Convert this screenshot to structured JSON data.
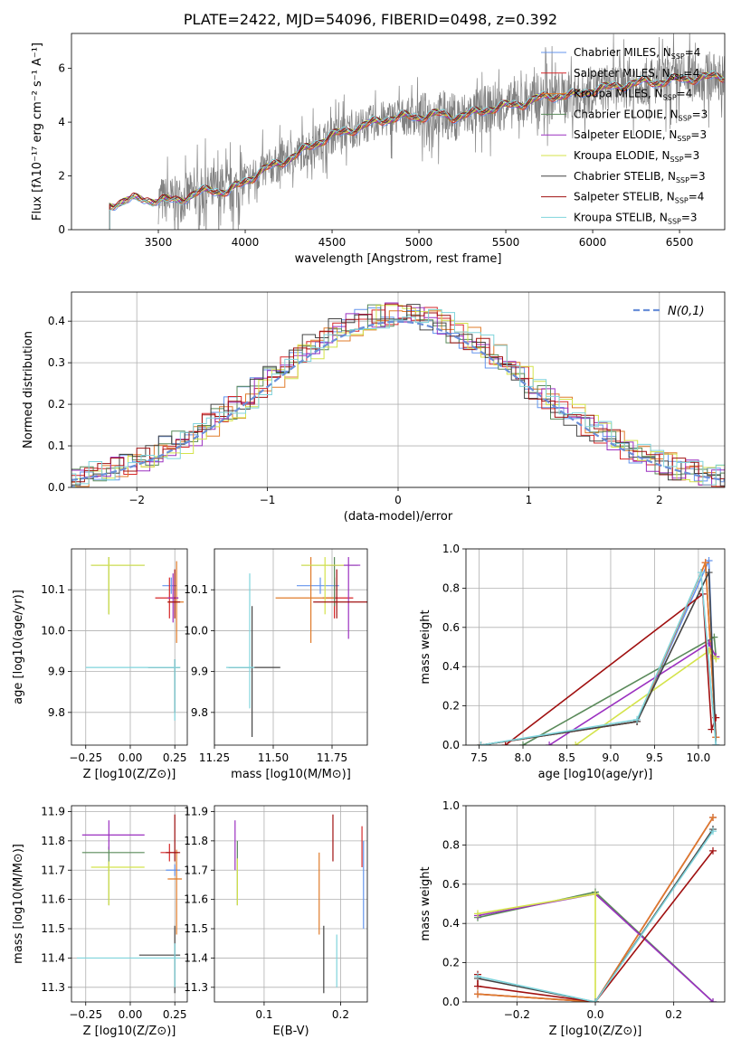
{
  "figure_title": "PLATE=2422, MJD=54096, FIBERID=0498, z=0.392",
  "colors": {
    "Chabrier MILES": "#6495ed",
    "Salpeter MILES": "#d62728",
    "Kroupa MILES": "#e07b2a",
    "Chabrier ELODIE": "#5a8a5a",
    "Salpeter ELODIE": "#9b30c0",
    "Kroupa ELODIE": "#d4e34a",
    "Chabrier STELIB": "#444444",
    "Salpeter STELIB": "#a01010",
    "Kroupa STELIB": "#7fd4dc",
    "normal": "#6a8fd8"
  },
  "chart_data": [
    {
      "id": "spectrum",
      "type": "line",
      "title": "",
      "xlabel": "wavelength [Angstrom, rest frame]",
      "ylabel": "Flux [fλ10⁻¹⁷ erg cm⁻² s⁻¹ A⁻¹]",
      "xlim": [
        3000,
        6760
      ],
      "ylim": [
        0,
        7.3
      ],
      "xticks": [
        3500,
        4000,
        4500,
        5000,
        5500,
        6000,
        6500
      ],
      "yticks": [
        0,
        2,
        4,
        6
      ],
      "grid": false,
      "legend": "upper-right",
      "legend_entries": [
        {
          "name": "Chabrier MILES, N",
          "sub": "SSP",
          "suffix": "=4"
        },
        {
          "name": "Salpeter MILES, N",
          "sub": "SSP",
          "suffix": "=4"
        },
        {
          "name": "Kroupa MILES, N",
          "sub": "SSP",
          "suffix": "=4"
        },
        {
          "name": "Chabrier ELODIE, N",
          "sub": "SSP",
          "suffix": "=3"
        },
        {
          "name": "Salpeter ELODIE, N",
          "sub": "SSP",
          "suffix": "=3"
        },
        {
          "name": "Kroupa ELODIE, N",
          "sub": "SSP",
          "suffix": "=3"
        },
        {
          "name": "Chabrier STELIB, N",
          "sub": "SSP",
          "suffix": "=3"
        },
        {
          "name": "Salpeter STELIB, N",
          "sub": "SSP",
          "suffix": "=4"
        },
        {
          "name": "Kroupa STELIB, N",
          "sub": "SSP",
          "suffix": "=3"
        }
      ],
      "model_start": 3220,
      "model_knots": [
        [
          3220,
          0.9
        ],
        [
          3300,
          1.1
        ],
        [
          3400,
          1.15
        ],
        [
          3500,
          1.1
        ],
        [
          3600,
          1.1
        ],
        [
          3700,
          1.3
        ],
        [
          3800,
          1.5
        ],
        [
          3900,
          1.4
        ],
        [
          4000,
          1.8
        ],
        [
          4100,
          2.2
        ],
        [
          4200,
          2.5
        ],
        [
          4300,
          2.8
        ],
        [
          4400,
          3.2
        ],
        [
          4500,
          3.5
        ],
        [
          4600,
          3.7
        ],
        [
          4700,
          3.9
        ],
        [
          4800,
          4.1
        ],
        [
          4900,
          4.2
        ],
        [
          5000,
          4.2
        ],
        [
          5100,
          4.3
        ],
        [
          5200,
          4.2
        ],
        [
          5300,
          4.3
        ],
        [
          5400,
          4.5
        ],
        [
          5500,
          4.6
        ],
        [
          5600,
          4.7
        ],
        [
          5700,
          4.9
        ],
        [
          5800,
          5.0
        ],
        [
          5900,
          5.0
        ],
        [
          6000,
          5.2
        ],
        [
          6100,
          5.3
        ],
        [
          6200,
          5.4
        ],
        [
          6300,
          5.5
        ],
        [
          6400,
          5.5
        ],
        [
          6500,
          5.6
        ],
        [
          6600,
          5.65
        ],
        [
          6760,
          5.7
        ]
      ]
    },
    {
      "id": "residuals",
      "type": "bar",
      "xlabel": "(data-model)/error",
      "ylabel": "Normed distribution",
      "xlim": [
        -2.5,
        2.5
      ],
      "ylim": [
        0,
        0.47
      ],
      "xticks": [
        -2,
        -1,
        0,
        1,
        2
      ],
      "yticks": [
        0.0,
        0.1,
        0.2,
        0.3,
        0.4
      ],
      "grid": true,
      "legend": "upper-right",
      "legend_label": "N(0,1)",
      "bin_edges": [
        -2.5,
        2.5
      ],
      "bin_width": 0.1,
      "envelope_sigma": 1.0,
      "envelope_peak": 0.4
    },
    {
      "id": "age_vs_Z",
      "type": "scatter",
      "xlabel": "Z [log10(Z/Z⊙)]",
      "ylabel": "age  [log10(age/yr)]",
      "xlim": [
        -0.33,
        0.32
      ],
      "ylim": [
        9.72,
        10.2
      ],
      "xticks": [
        -0.25,
        0.0,
        0.25
      ],
      "yticks": [
        9.8,
        9.9,
        10.0,
        10.1
      ],
      "grid": true,
      "points": [
        {
          "m": "Chabrier MILES",
          "x": 0.23,
          "y": 10.11,
          "ex": [
            0.05,
            0.03
          ],
          "ey": [
            0.02,
            0.02
          ]
        },
        {
          "m": "Salpeter MILES",
          "x": 0.22,
          "y": 10.08,
          "ex": [
            0.08,
            0.05
          ],
          "ey": [
            0.05,
            0.05
          ]
        },
        {
          "m": "Kroupa MILES",
          "x": 0.26,
          "y": 10.07,
          "ex": [
            0.05,
            0.04
          ],
          "ey": [
            0.1,
            0.1
          ]
        },
        {
          "m": "Chabrier ELODIE",
          "x": -0.12,
          "y": 10.16,
          "ex": [
            0.1,
            0.2
          ],
          "ey": [
            0.12,
            0.02
          ]
        },
        {
          "m": "Salpeter ELODIE",
          "x": 0.24,
          "y": 10.08,
          "ex": [
            0.03,
            0.03
          ],
          "ey": [
            0.06,
            0.06
          ]
        },
        {
          "m": "Kroupa ELODIE",
          "x": -0.12,
          "y": 10.16,
          "ex": [
            0.1,
            0.2
          ],
          "ey": [
            0.12,
            0.02
          ]
        },
        {
          "m": "Chabrier STELIB",
          "x": 0.25,
          "y": 9.91,
          "ex": [
            0.15,
            0.03
          ],
          "ey": [
            0.11,
            0.02
          ]
        },
        {
          "m": "Salpeter STELIB",
          "x": 0.25,
          "y": 10.07,
          "ex": [
            0.04,
            0.03
          ],
          "ey": [
            0.04,
            0.08
          ]
        },
        {
          "m": "Kroupa STELIB",
          "x": 0.25,
          "y": 9.91,
          "ex": [
            0.5,
            0.03
          ],
          "ey": [
            0.13,
            0.02
          ]
        }
      ]
    },
    {
      "id": "age_vs_mass",
      "type": "scatter",
      "xlabel": "mass [log10(M/M⊙)]",
      "ylabel": "",
      "xlim": [
        11.25,
        11.9
      ],
      "ylim": [
        9.72,
        10.2
      ],
      "xticks": [
        11.25,
        11.5,
        11.75
      ],
      "yticks": [
        9.8,
        9.9,
        10.0,
        10.1
      ],
      "grid": true,
      "points": [
        {
          "m": "Chabrier MILES",
          "x": 11.7,
          "y": 10.11,
          "ex": [
            0.1,
            0.08
          ],
          "ey": [
            0.02,
            0.02
          ]
        },
        {
          "m": "Salpeter MILES",
          "x": 11.76,
          "y": 10.08,
          "ex": [
            0.05,
            0.08
          ],
          "ey": [
            0.05,
            0.05
          ]
        },
        {
          "m": "Kroupa MILES",
          "x": 11.66,
          "y": 10.08,
          "ex": [
            0.15,
            0.1
          ],
          "ey": [
            0.11,
            0.1
          ]
        },
        {
          "m": "Chabrier ELODIE",
          "x": 11.76,
          "y": 10.16,
          "ex": [
            0.14,
            0.1
          ],
          "ey": [
            0.1,
            0.02
          ]
        },
        {
          "m": "Salpeter ELODIE",
          "x": 11.82,
          "y": 10.16,
          "ex": [
            0.08,
            0.05
          ],
          "ey": [
            0.18,
            0.02
          ]
        },
        {
          "m": "Kroupa ELODIE",
          "x": 11.72,
          "y": 10.16,
          "ex": [
            0.1,
            0.08
          ],
          "ey": [
            0.12,
            0.02
          ]
        },
        {
          "m": "Chabrier STELIB",
          "x": 11.41,
          "y": 9.91,
          "ex": [
            0.1,
            0.12
          ],
          "ey": [
            0.17,
            0.15
          ]
        },
        {
          "m": "Salpeter STELIB",
          "x": 11.77,
          "y": 10.07,
          "ex": [
            0.1,
            0.15
          ],
          "ey": [
            0.04,
            0.08
          ]
        },
        {
          "m": "Kroupa STELIB",
          "x": 11.4,
          "y": 9.91,
          "ex": [
            0.1,
            0.02
          ],
          "ey": [
            0.1,
            0.23
          ]
        }
      ]
    },
    {
      "id": "massweight_vs_age",
      "type": "line",
      "xlabel": "age  [log10(age/yr)]",
      "ylabel": "mass weight",
      "xlim": [
        7.35,
        10.3
      ],
      "ylim": [
        0,
        1.0
      ],
      "xticks": [
        7.5,
        8.0,
        8.5,
        9.0,
        9.5,
        10.0
      ],
      "yticks": [
        0.0,
        0.2,
        0.4,
        0.6,
        0.8,
        1.0
      ],
      "grid": true,
      "series": [
        {
          "m": "Chabrier MILES",
          "x": [
            7.52,
            9.3,
            10.12,
            10.2
          ],
          "y": [
            0.0,
            0.12,
            0.94,
            0.0
          ]
        },
        {
          "m": "Salpeter MILES",
          "x": [
            7.52,
            9.3,
            10.08,
            10.2
          ],
          "y": [
            0.0,
            0.12,
            0.93,
            0.04
          ]
        },
        {
          "m": "Kroupa MILES",
          "x": [
            7.52,
            9.3,
            10.08,
            10.2
          ],
          "y": [
            0.0,
            0.12,
            0.93,
            0.04
          ]
        },
        {
          "m": "Chabrier ELODIE",
          "x": [
            8.0,
            10.18,
            10.2
          ],
          "y": [
            0.0,
            0.55,
            0.45
          ]
        },
        {
          "m": "Salpeter ELODIE",
          "x": [
            8.3,
            10.12,
            10.2
          ],
          "y": [
            0.0,
            0.52,
            0.45
          ]
        },
        {
          "m": "Kroupa ELODIE",
          "x": [
            8.6,
            10.12,
            10.2
          ],
          "y": [
            0.0,
            0.48,
            0.44
          ]
        },
        {
          "m": "Chabrier STELIB",
          "x": [
            7.52,
            9.3,
            10.12,
            10.2
          ],
          "y": [
            0.0,
            0.12,
            0.88,
            0.0
          ]
        },
        {
          "m": "Salpeter STELIB",
          "x": [
            7.8,
            10.05,
            10.15,
            10.2
          ],
          "y": [
            0.0,
            0.77,
            0.08,
            0.14
          ]
        },
        {
          "m": "Kroupa STELIB",
          "x": [
            7.52,
            9.3,
            10.03,
            10.2
          ],
          "y": [
            0.0,
            0.13,
            0.88,
            0.0
          ]
        }
      ]
    },
    {
      "id": "mass_vs_Z",
      "type": "scatter",
      "xlabel": "Z [log10(Z/Z⊙)]",
      "ylabel": "mass [log10(M/M⊙)]",
      "xlim": [
        -0.33,
        0.32
      ],
      "ylim": [
        11.25,
        11.92
      ],
      "xticks": [
        -0.25,
        0.0,
        0.25
      ],
      "yticks": [
        11.3,
        11.4,
        11.5,
        11.6,
        11.7,
        11.8,
        11.9
      ],
      "grid": true,
      "points": [
        {
          "m": "Chabrier MILES",
          "x": 0.25,
          "y": 11.7,
          "ex": [
            0.05,
            0.03
          ],
          "ey": [
            0.02,
            0.02
          ]
        },
        {
          "m": "Salpeter MILES",
          "x": 0.22,
          "y": 11.76,
          "ex": [
            0.05,
            0.05
          ],
          "ey": [
            0.03,
            0.03
          ]
        },
        {
          "m": "Kroupa MILES",
          "x": 0.26,
          "y": 11.67,
          "ex": [
            0.05,
            0.03
          ],
          "ey": [
            0.19,
            0.1
          ]
        },
        {
          "m": "Chabrier ELODIE",
          "x": -0.12,
          "y": 11.76,
          "ex": [
            0.15,
            0.2
          ],
          "ey": [
            0.18,
            0.02
          ]
        },
        {
          "m": "Salpeter ELODIE",
          "x": -0.12,
          "y": 11.82,
          "ex": [
            0.15,
            0.2
          ],
          "ey": [
            0.05,
            0.05
          ]
        },
        {
          "m": "Kroupa ELODIE",
          "x": -0.12,
          "y": 11.71,
          "ex": [
            0.1,
            0.2
          ],
          "ey": [
            0.13,
            0.02
          ]
        },
        {
          "m": "Chabrier STELIB",
          "x": 0.25,
          "y": 11.41,
          "ex": [
            0.2,
            0.03
          ],
          "ey": [
            0.13,
            0.1
          ]
        },
        {
          "m": "Salpeter STELIB",
          "x": 0.25,
          "y": 11.76,
          "ex": [
            0.05,
            0.03
          ],
          "ey": [
            0.03,
            0.13
          ]
        },
        {
          "m": "Kroupa STELIB",
          "x": 0.25,
          "y": 11.4,
          "ex": [
            0.55,
            0.03
          ],
          "ey": [
            0.1,
            0.05
          ]
        }
      ]
    },
    {
      "id": "mass_vs_ebv",
      "type": "scatter",
      "xlabel": "E(B-V)",
      "ylabel": "",
      "xlim": [
        0.035,
        0.235
      ],
      "ylim": [
        11.25,
        11.92
      ],
      "xticks": [
        0.1,
        0.2
      ],
      "yticks": [
        11.3,
        11.4,
        11.5,
        11.6,
        11.7,
        11.8,
        11.9
      ],
      "grid": true,
      "points": [
        {
          "m": "Chabrier MILES",
          "x": 0.23,
          "y": 11.7,
          "ex": [
            0,
            0
          ],
          "ey": [
            0.2,
            0.1
          ]
        },
        {
          "m": "Salpeter MILES",
          "x": 0.228,
          "y": 11.76,
          "ex": [
            0,
            0
          ],
          "ey": [
            0.05,
            0.09
          ]
        },
        {
          "m": "Kroupa MILES",
          "x": 0.172,
          "y": 11.66,
          "ex": [
            0,
            0
          ],
          "ey": [
            0.18,
            0.1
          ]
        },
        {
          "m": "Chabrier ELODIE",
          "x": 0.065,
          "y": 11.76,
          "ex": [
            0,
            0
          ],
          "ey": [
            0.18,
            0.04
          ]
        },
        {
          "m": "Salpeter ELODIE",
          "x": 0.062,
          "y": 11.82,
          "ex": [
            0,
            0
          ],
          "ey": [
            0.12,
            0.05
          ]
        },
        {
          "m": "Kroupa ELODIE",
          "x": 0.065,
          "y": 11.71,
          "ex": [
            0,
            0
          ],
          "ey": [
            0.13,
            0.03
          ]
        },
        {
          "m": "Chabrier STELIB",
          "x": 0.178,
          "y": 11.41,
          "ex": [
            0,
            0
          ],
          "ey": [
            0.13,
            0.1
          ]
        },
        {
          "m": "Salpeter STELIB",
          "x": 0.19,
          "y": 11.82,
          "ex": [
            0,
            0
          ],
          "ey": [
            0.09,
            0.07
          ]
        },
        {
          "m": "Kroupa STELIB",
          "x": 0.195,
          "y": 11.4,
          "ex": [
            0,
            0
          ],
          "ey": [
            0.1,
            0.08
          ]
        }
      ]
    },
    {
      "id": "massweight_vs_Z",
      "type": "line",
      "xlabel": "Z [log10(Z/Z⊙)]",
      "ylabel": "mass weight",
      "xlim": [
        -0.33,
        0.33
      ],
      "ylim": [
        0,
        1.0
      ],
      "xticks": [
        -0.2,
        0.0,
        0.2
      ],
      "yticks": [
        0.0,
        0.2,
        0.4,
        0.6,
        0.8,
        1.0
      ],
      "grid": true,
      "series": [
        {
          "m": "Chabrier MILES",
          "x": [
            -0.3,
            0.0,
            0.3
          ],
          "y": [
            0.04,
            0.0,
            0.94
          ]
        },
        {
          "m": "Salpeter MILES",
          "x": [
            -0.3,
            0.0,
            0.3
          ],
          "y": [
            0.04,
            0.0,
            0.94
          ]
        },
        {
          "m": "Kroupa MILES",
          "x": [
            -0.3,
            0.0,
            0.3
          ],
          "y": [
            0.04,
            0.0,
            0.94
          ]
        },
        {
          "m": "Chabrier ELODIE",
          "x": [
            -0.3,
            0.0,
            0.3
          ],
          "y": [
            0.43,
            0.56,
            0.0
          ]
        },
        {
          "m": "Salpeter ELODIE",
          "x": [
            -0.3,
            0.0,
            0.3
          ],
          "y": [
            0.44,
            0.55,
            0.0
          ]
        },
        {
          "m": "Kroupa ELODIE",
          "x": [
            -0.3,
            0.0,
            0.0
          ],
          "y": [
            0.45,
            0.55,
            0.0
          ]
        },
        {
          "m": "Chabrier STELIB",
          "x": [
            -0.3,
            0.0,
            0.3
          ],
          "y": [
            0.12,
            0.0,
            0.88
          ]
        },
        {
          "m": "Salpeter STELIB",
          "x": [
            -0.3,
            -0.3,
            0.0,
            0.3
          ],
          "y": [
            0.14,
            0.08,
            0.0,
            0.77
          ]
        },
        {
          "m": "Kroupa STELIB",
          "x": [
            -0.3,
            0.0,
            0.3
          ],
          "y": [
            0.13,
            0.0,
            0.87
          ]
        }
      ]
    }
  ]
}
